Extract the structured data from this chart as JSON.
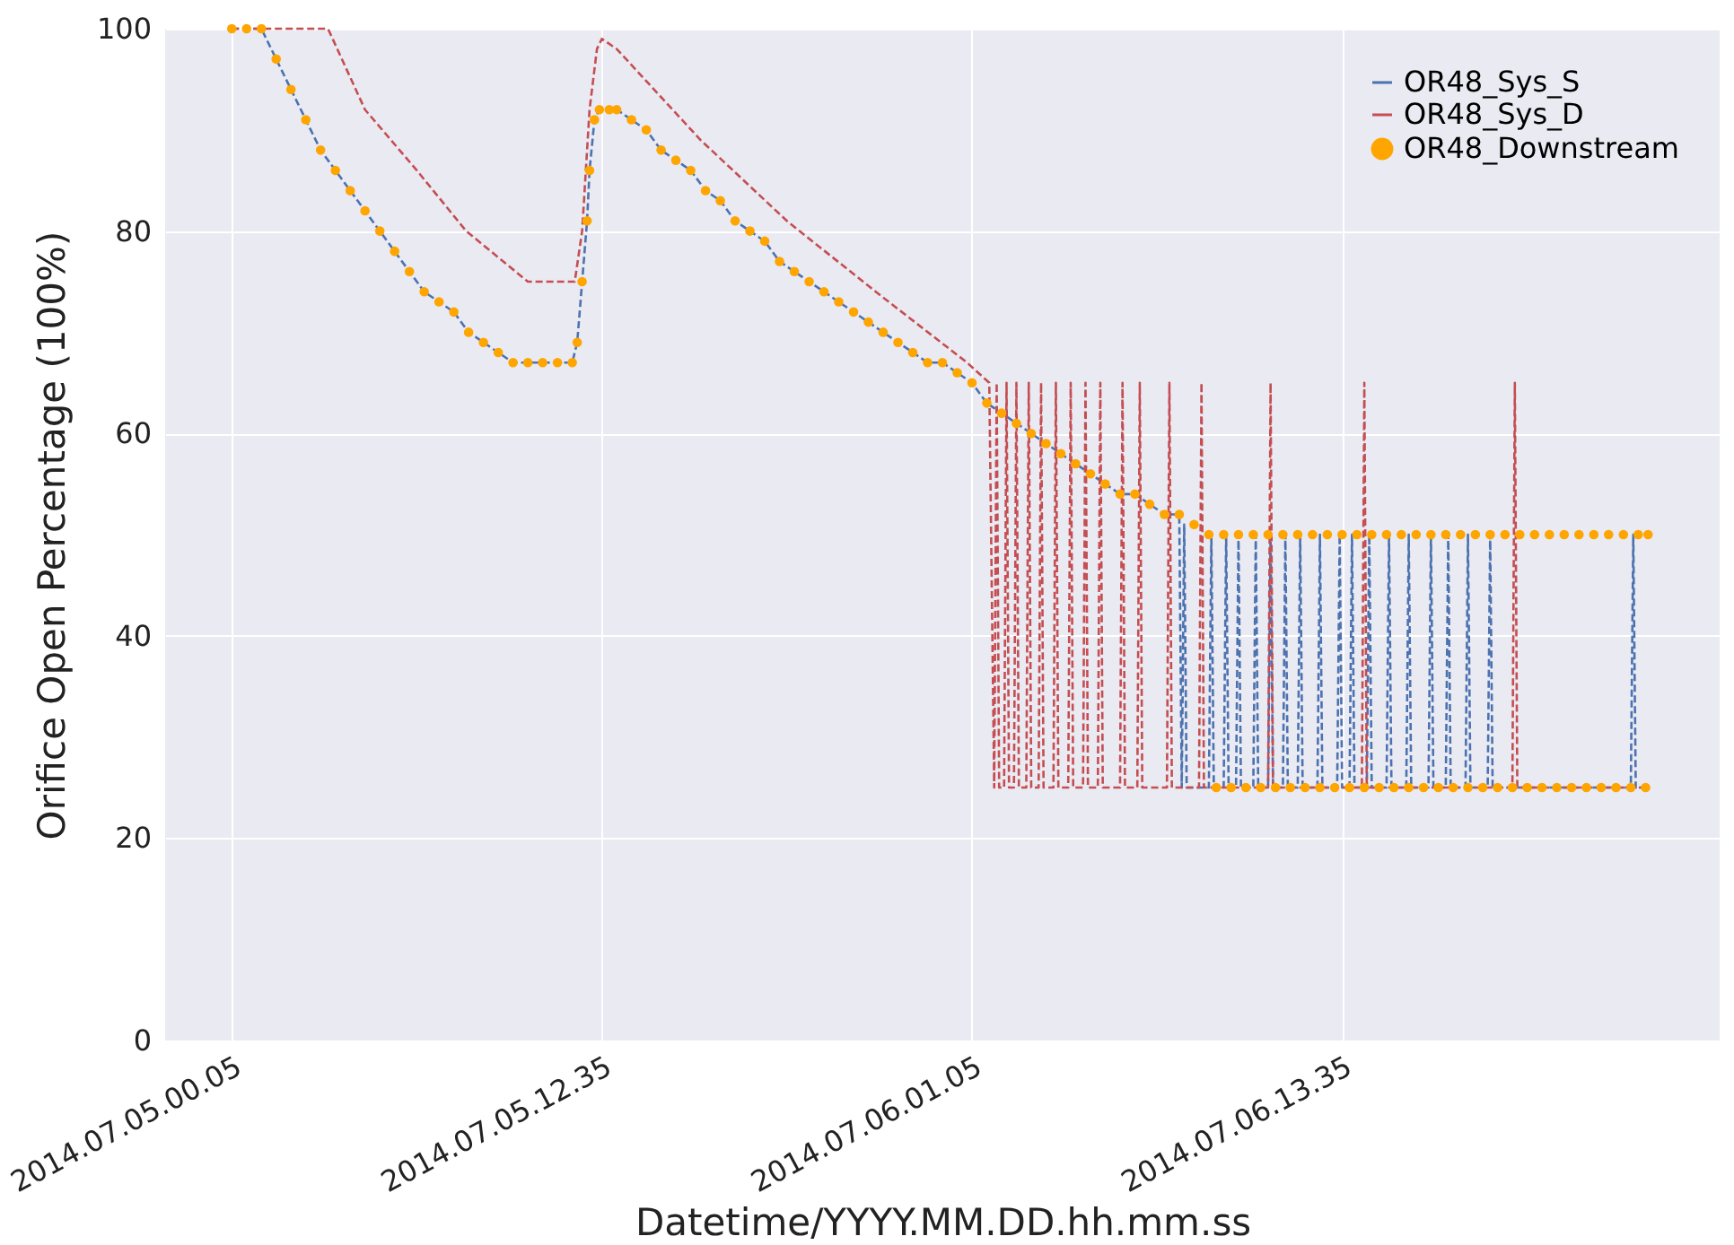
{
  "chart_data": {
    "type": "line",
    "xlabel": "Datetime/YYYY.MM.DD.hh.mm.ss",
    "ylabel": "Orifice Open Percentage (100%)",
    "xlim": [
      "2014-07-04T21:50",
      "2014-07-07T02:20"
    ],
    "xticks": [
      {
        "value": "2014-07-05T00:05",
        "label": "2014.07.05.00.05"
      },
      {
        "value": "2014-07-05T12:35",
        "label": "2014.07.05.12.35"
      },
      {
        "value": "2014-07-06T01:05",
        "label": "2014.07.06.01.05"
      },
      {
        "value": "2014-07-06T13:35",
        "label": "2014.07.06.13.35"
      }
    ],
    "ylim": [
      0,
      100
    ],
    "yticks": [
      0,
      20,
      40,
      60,
      80,
      100
    ],
    "grid": true,
    "legend": "top right",
    "series": [
      {
        "name": "OR48_Sys_S",
        "line_style": "dashed",
        "color": "#4c72b0",
        "x": [
          "2014-07-05T00:05",
          "2014-07-05T00:35",
          "2014-07-05T01:05",
          "2014-07-05T01:35",
          "2014-07-05T02:05",
          "2014-07-05T02:35",
          "2014-07-05T03:05",
          "2014-07-05T03:35",
          "2014-07-05T04:05",
          "2014-07-05T04:35",
          "2014-07-05T05:05",
          "2014-07-05T05:35",
          "2014-07-05T06:05",
          "2014-07-05T06:35",
          "2014-07-05T07:05",
          "2014-07-05T07:35",
          "2014-07-05T08:05",
          "2014-07-05T08:35",
          "2014-07-05T09:05",
          "2014-07-05T09:35",
          "2014-07-05T10:05",
          "2014-07-05T10:35",
          "2014-07-05T11:05",
          "2014-07-05T11:35",
          "2014-07-05T11:45",
          "2014-07-05T11:55",
          "2014-07-05T12:05",
          "2014-07-05T12:10",
          "2014-07-05T12:20",
          "2014-07-05T12:30",
          "2014-07-05T12:50",
          "2014-07-05T13:05",
          "2014-07-05T13:35",
          "2014-07-05T14:05",
          "2014-07-05T14:35",
          "2014-07-05T15:05",
          "2014-07-05T15:35",
          "2014-07-05T16:05",
          "2014-07-05T16:35",
          "2014-07-05T17:05",
          "2014-07-05T17:35",
          "2014-07-05T18:05",
          "2014-07-05T18:35",
          "2014-07-05T19:05",
          "2014-07-05T19:35",
          "2014-07-05T20:05",
          "2014-07-05T20:35",
          "2014-07-05T21:05",
          "2014-07-05T21:35",
          "2014-07-05T22:05",
          "2014-07-05T22:35",
          "2014-07-05T23:05",
          "2014-07-05T23:35",
          "2014-07-06T00:05",
          "2014-07-06T00:35",
          "2014-07-06T01:05",
          "2014-07-06T01:35",
          "2014-07-06T02:05",
          "2014-07-06T02:35",
          "2014-07-06T03:05",
          "2014-07-06T03:35",
          "2014-07-06T04:05",
          "2014-07-06T04:35",
          "2014-07-06T05:05",
          "2014-07-06T05:35",
          "2014-07-06T06:05",
          "2014-07-06T06:35",
          "2014-07-06T07:05",
          "2014-07-06T07:35",
          "2014-07-06T08:05",
          "2014-07-06T08:10",
          "2014-07-06T08:15",
          "2014-07-06T08:20",
          "2014-07-06T09:05",
          "2014-07-06T09:10",
          "2014-07-06T09:15",
          "2014-07-06T09:35",
          "2014-07-06T09:40",
          "2014-07-06T09:45",
          "2014-07-06T10:00",
          "2014-07-06T10:05",
          "2014-07-06T10:10",
          "2014-07-06T10:35",
          "2014-07-06T10:40",
          "2014-07-06T10:45",
          "2014-07-06T11:05",
          "2014-07-06T11:10",
          "2014-07-06T11:15",
          "2014-07-06T11:35",
          "2014-07-06T11:40",
          "2014-07-06T11:45",
          "2014-07-06T12:05",
          "2014-07-06T12:10",
          "2014-07-06T12:15",
          "2014-07-06T12:45",
          "2014-07-06T12:50",
          "2014-07-06T12:55",
          "2014-07-06T13:25",
          "2014-07-06T13:30",
          "2014-07-06T13:35",
          "2014-07-06T13:50",
          "2014-07-06T13:55",
          "2014-07-06T14:00",
          "2014-07-06T14:25",
          "2014-07-06T14:30",
          "2014-07-06T14:35",
          "2014-07-06T15:05",
          "2014-07-06T15:10",
          "2014-07-06T15:15",
          "2014-07-06T15:45",
          "2014-07-06T15:50",
          "2014-07-06T15:55",
          "2014-07-06T16:30",
          "2014-07-06T16:35",
          "2014-07-06T16:40",
          "2014-07-06T17:05",
          "2014-07-06T17:10",
          "2014-07-06T17:15",
          "2014-07-06T17:45",
          "2014-07-06T17:50",
          "2014-07-06T17:55",
          "2014-07-06T18:30",
          "2014-07-06T18:35",
          "2014-07-06T18:40",
          "2014-07-06T23:20",
          "2014-07-06T23:25",
          "2014-07-06T23:30",
          "2014-07-06T23:55"
        ],
        "values": [
          100,
          100,
          100,
          97,
          94,
          91,
          88,
          86,
          84,
          82,
          80,
          78,
          76,
          74,
          73,
          72,
          70,
          69,
          68,
          67,
          67,
          67,
          67,
          67,
          69,
          75,
          81,
          86,
          91,
          92,
          92,
          92,
          91,
          90,
          88,
          87,
          86,
          84,
          83,
          81,
          80,
          79,
          77,
          76,
          75,
          74,
          73,
          72,
          71,
          70,
          69,
          68,
          67,
          67,
          66,
          65,
          63,
          62,
          61,
          60,
          59,
          58,
          57,
          56,
          55,
          54,
          54,
          53,
          52,
          52,
          25,
          51,
          25,
          25,
          50,
          25,
          25,
          50,
          25,
          25,
          50,
          25,
          25,
          50,
          25,
          25,
          50,
          25,
          25,
          50,
          25,
          25,
          50,
          25,
          25,
          50,
          25,
          25,
          50,
          25,
          25,
          50,
          25,
          25,
          50,
          25,
          25,
          50,
          25,
          25,
          50,
          25,
          25,
          50,
          25,
          25,
          50,
          25,
          25,
          50,
          25,
          25,
          50,
          25,
          25,
          50,
          25,
          25
        ]
      },
      {
        "name": "OR48_Sys_D",
        "line_style": "dashed",
        "color": "#c44e52",
        "x": [
          "2014-07-05T00:05",
          "2014-07-05T03:20",
          "2014-07-05T04:35",
          "2014-07-05T06:20",
          "2014-07-05T08:00",
          "2014-07-05T10:05",
          "2014-07-05T11:40",
          "2014-07-05T11:55",
          "2014-07-05T12:10",
          "2014-07-05T12:25",
          "2014-07-05T12:35",
          "2014-07-05T13:05",
          "2014-07-05T15:55",
          "2014-07-05T18:50",
          "2014-07-05T21:50",
          "2014-07-06T00:55",
          "2014-07-06T01:40",
          "2014-07-06T01:50",
          "2014-07-06T01:55",
          "2014-07-06T02:00",
          "2014-07-06T02:10",
          "2014-07-06T02:15",
          "2014-07-06T02:20",
          "2014-07-06T02:30",
          "2014-07-06T02:35",
          "2014-07-06T02:40",
          "2014-07-06T02:55",
          "2014-07-06T03:00",
          "2014-07-06T03:05",
          "2014-07-06T03:20",
          "2014-07-06T03:25",
          "2014-07-06T03:30",
          "2014-07-06T03:50",
          "2014-07-06T03:55",
          "2014-07-06T04:00",
          "2014-07-06T04:20",
          "2014-07-06T04:25",
          "2014-07-06T04:30",
          "2014-07-06T04:50",
          "2014-07-06T04:55",
          "2014-07-06T05:00",
          "2014-07-06T05:20",
          "2014-07-06T05:25",
          "2014-07-06T05:30",
          "2014-07-06T06:05",
          "2014-07-06T06:10",
          "2014-07-06T06:15",
          "2014-07-06T06:40",
          "2014-07-06T06:45",
          "2014-07-06T06:50",
          "2014-07-06T07:40",
          "2014-07-06T07:45",
          "2014-07-06T07:50",
          "2014-07-06T08:45",
          "2014-07-06T08:50",
          "2014-07-06T08:55",
          "2014-07-06T11:05",
          "2014-07-06T11:10",
          "2014-07-06T11:15",
          "2014-07-06T14:15",
          "2014-07-06T14:20",
          "2014-07-06T14:25",
          "2014-07-06T19:20",
          "2014-07-06T19:25",
          "2014-07-06T19:30",
          "2014-07-06T23:55"
        ],
        "values": [
          100,
          100,
          92,
          86,
          80,
          75,
          75,
          80,
          92,
          98,
          99,
          98,
          89,
          81,
          74,
          67,
          65,
          25,
          65,
          25,
          25,
          65,
          25,
          25,
          65,
          25,
          25,
          65,
          25,
          25,
          65,
          25,
          25,
          65,
          25,
          25,
          65,
          25,
          25,
          65,
          25,
          25,
          65,
          25,
          25,
          65,
          25,
          25,
          65,
          25,
          25,
          65,
          25,
          25,
          65,
          25,
          25,
          65,
          25,
          25,
          65,
          25,
          25,
          65,
          25,
          25
        ]
      },
      {
        "name": "OR48_Downstream",
        "type": "scatter",
        "marker": "circle",
        "color": "#ffa500",
        "x": [
          "2014-07-05T00:05",
          "2014-07-05T00:35",
          "2014-07-05T01:05",
          "2014-07-05T01:35",
          "2014-07-05T02:05",
          "2014-07-05T02:35",
          "2014-07-05T03:05",
          "2014-07-05T03:35",
          "2014-07-05T04:05",
          "2014-07-05T04:35",
          "2014-07-05T05:05",
          "2014-07-05T05:35",
          "2014-07-05T06:05",
          "2014-07-05T06:35",
          "2014-07-05T07:05",
          "2014-07-05T07:35",
          "2014-07-05T08:05",
          "2014-07-05T08:35",
          "2014-07-05T09:05",
          "2014-07-05T09:35",
          "2014-07-05T10:05",
          "2014-07-05T10:35",
          "2014-07-05T11:05",
          "2014-07-05T11:35",
          "2014-07-05T11:45",
          "2014-07-05T11:55",
          "2014-07-05T12:05",
          "2014-07-05T12:10",
          "2014-07-05T12:20",
          "2014-07-05T12:30",
          "2014-07-05T12:50",
          "2014-07-05T13:05",
          "2014-07-05T13:35",
          "2014-07-05T14:05",
          "2014-07-05T14:35",
          "2014-07-05T15:05",
          "2014-07-05T15:35",
          "2014-07-05T16:05",
          "2014-07-05T16:35",
          "2014-07-05T17:05",
          "2014-07-05T17:35",
          "2014-07-05T18:05",
          "2014-07-05T18:35",
          "2014-07-05T19:05",
          "2014-07-05T19:35",
          "2014-07-05T20:05",
          "2014-07-05T20:35",
          "2014-07-05T21:05",
          "2014-07-05T21:35",
          "2014-07-05T22:05",
          "2014-07-05T22:35",
          "2014-07-05T23:05",
          "2014-07-05T23:35",
          "2014-07-06T00:05",
          "2014-07-06T00:35",
          "2014-07-06T01:05",
          "2014-07-06T01:35",
          "2014-07-06T02:05",
          "2014-07-06T02:35",
          "2014-07-06T03:05",
          "2014-07-06T03:35",
          "2014-07-06T04:05",
          "2014-07-06T04:35",
          "2014-07-06T05:05",
          "2014-07-06T05:35",
          "2014-07-06T06:05",
          "2014-07-06T06:35",
          "2014-07-06T07:05",
          "2014-07-06T07:35",
          "2014-07-06T08:05",
          "2014-07-06T08:35",
          "2014-07-06T09:05",
          "2014-07-06T09:20",
          "2014-07-06T09:35",
          "2014-07-06T09:50",
          "2014-07-06T10:05",
          "2014-07-06T10:20",
          "2014-07-06T10:35",
          "2014-07-06T10:50",
          "2014-07-06T11:05",
          "2014-07-06T11:20",
          "2014-07-06T11:35",
          "2014-07-06T11:50",
          "2014-07-06T12:05",
          "2014-07-06T12:20",
          "2014-07-06T12:35",
          "2014-07-06T12:50",
          "2014-07-06T13:05",
          "2014-07-06T13:20",
          "2014-07-06T13:35",
          "2014-07-06T13:50",
          "2014-07-06T14:05",
          "2014-07-06T14:20",
          "2014-07-06T14:35",
          "2014-07-06T14:50",
          "2014-07-06T15:05",
          "2014-07-06T15:20",
          "2014-07-06T15:35",
          "2014-07-06T15:50",
          "2014-07-06T16:05",
          "2014-07-06T16:20",
          "2014-07-06T16:35",
          "2014-07-06T16:50",
          "2014-07-06T17:05",
          "2014-07-06T17:20",
          "2014-07-06T17:35",
          "2014-07-06T17:50",
          "2014-07-06T18:05",
          "2014-07-06T18:20",
          "2014-07-06T18:35",
          "2014-07-06T18:50",
          "2014-07-06T19:05",
          "2014-07-06T19:20",
          "2014-07-06T19:35",
          "2014-07-06T19:50",
          "2014-07-06T20:05",
          "2014-07-06T20:20",
          "2014-07-06T20:35",
          "2014-07-06T20:50",
          "2014-07-06T21:05",
          "2014-07-06T21:20",
          "2014-07-06T21:35",
          "2014-07-06T21:50",
          "2014-07-06T22:05",
          "2014-07-06T22:20",
          "2014-07-06T22:35",
          "2014-07-06T22:50",
          "2014-07-06T23:05",
          "2014-07-06T23:20",
          "2014-07-06T23:35",
          "2014-07-06T23:50",
          "2014-07-06T23:55"
        ],
        "values": [
          100,
          100,
          100,
          97,
          94,
          91,
          88,
          86,
          84,
          82,
          80,
          78,
          76,
          74,
          73,
          72,
          70,
          69,
          68,
          67,
          67,
          67,
          67,
          67,
          69,
          75,
          81,
          86,
          91,
          92,
          92,
          92,
          91,
          90,
          88,
          87,
          86,
          84,
          83,
          81,
          80,
          79,
          77,
          76,
          75,
          74,
          73,
          72,
          71,
          70,
          69,
          68,
          67,
          67,
          66,
          65,
          63,
          62,
          61,
          60,
          59,
          58,
          57,
          56,
          55,
          54,
          54,
          53,
          52,
          52,
          51,
          50,
          25,
          50,
          25,
          50,
          25,
          50,
          25,
          50,
          25,
          50,
          25,
          50,
          25,
          50,
          25,
          50,
          25,
          50,
          25,
          50,
          25,
          50,
          25,
          50,
          25,
          50,
          25,
          50,
          25,
          50,
          25,
          50,
          25,
          50,
          25,
          50,
          25,
          50,
          25,
          50,
          25,
          50,
          25,
          50,
          25,
          50,
          25,
          50,
          25,
          50,
          25,
          50,
          25,
          50,
          25,
          50,
          25,
          50,
          25,
          50
        ]
      }
    ]
  }
}
